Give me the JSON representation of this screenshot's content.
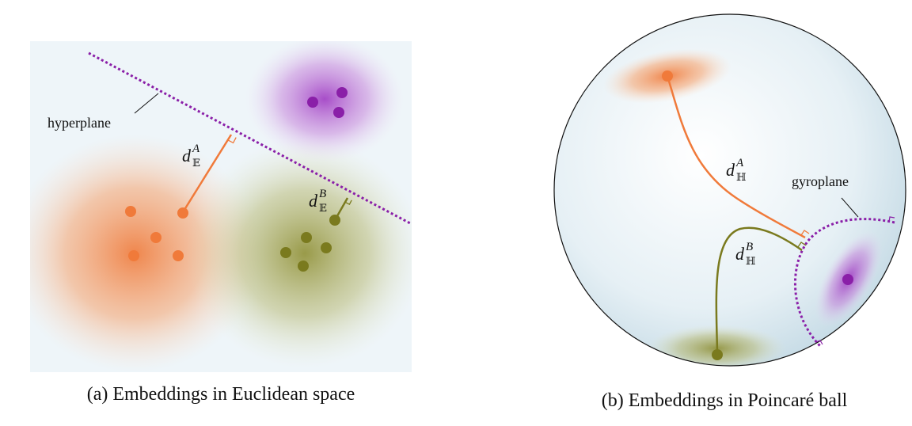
{
  "panel_a": {
    "caption": "(a) Embeddings in Euclidean space",
    "hyperplane_label": "hyperplane",
    "dist_a": {
      "base": "d",
      "sub": "𝔼",
      "sup": "A"
    },
    "dist_b": {
      "base": "d",
      "sub": "𝔼",
      "sup": "B"
    }
  },
  "panel_b": {
    "caption": "(b) Embeddings in Poincaré ball",
    "gyroplane_label": "gyroplane",
    "dist_a": {
      "base": "d",
      "sub": "ℍ",
      "sup": "A"
    },
    "dist_b": {
      "base": "d",
      "sub": "ℍ",
      "sup": "B"
    }
  },
  "colors": {
    "orange": "#f07a3a",
    "purple": "#8a1fa8",
    "olive": "#7a7a1e",
    "panel_bg": "#eef5f9",
    "ball_edge": "#111111"
  }
}
